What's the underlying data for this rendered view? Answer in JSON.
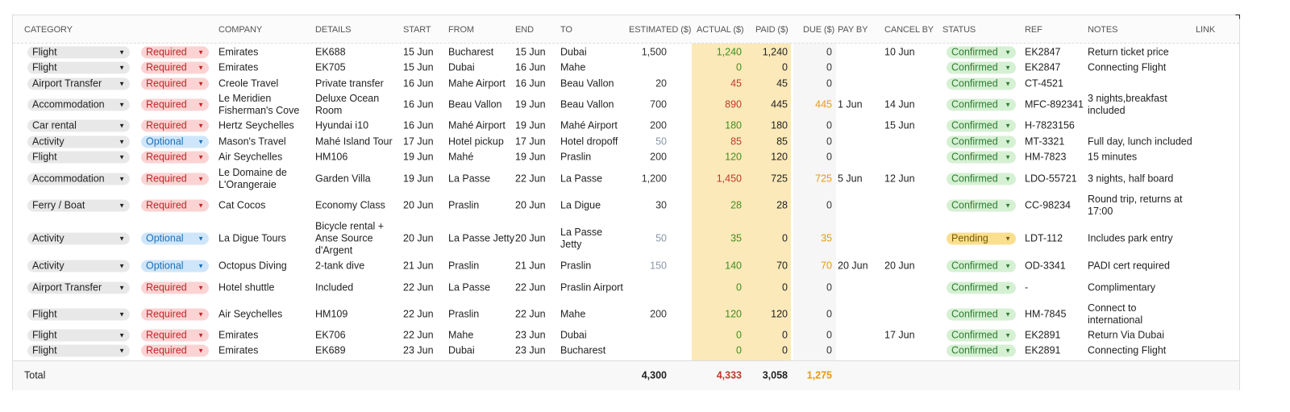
{
  "colors": {
    "green": "#3f8f1f",
    "red": "#c0392b",
    "orange": "#e69a0e",
    "muted": "#8a97a8",
    "required_bg": "#fbd3d3",
    "required_fg": "#c0262a",
    "optional_bg": "#cfe6fa",
    "optional_fg": "#1f6fb5",
    "confirmed_bg": "#d6f0d3",
    "confirmed_fg": "#2e7d32",
    "pending_bg": "#fbdf8f",
    "pending_fg": "#7a5a00",
    "category_bg": "#e8e8e8"
  },
  "headers": {
    "category": "CATEGORY",
    "company": "COMPANY",
    "details": "DETAILS",
    "start": "START",
    "from": "FROM",
    "end": "END",
    "to": "TO",
    "estimated": "ESTIMATED ($)",
    "actual": "ACTUAL ($)",
    "paid": "PAID ($)",
    "due": "DUE ($)",
    "pay_by": "PAY BY",
    "cancel_by": "CANCEL BY",
    "status": "STATUS",
    "ref": "REF",
    "notes": "NOTES",
    "link": "LINK"
  },
  "rows": [
    {
      "category": "Flight",
      "priority": "Required",
      "company": "Emirates",
      "details": "EK688",
      "start": "15 Jun",
      "from": "Bucharest",
      "end": "15 Jun",
      "to": "Dubai",
      "estimated": "1,500",
      "actual": "1,240",
      "actual_state": "under",
      "paid": "1,240",
      "due": "0",
      "pay_by": "",
      "cancel_by": "10 Jun",
      "status": "Confirmed",
      "ref": "EK2847",
      "notes": "Return ticket price"
    },
    {
      "category": "Flight",
      "priority": "Required",
      "company": "Emirates",
      "details": "EK705",
      "start": "15 Jun",
      "from": "Dubai",
      "end": "16 Jun",
      "to": "Mahe",
      "estimated": "",
      "actual": "0",
      "actual_state": "under",
      "paid": "0",
      "due": "0",
      "pay_by": "",
      "cancel_by": "",
      "status": "Confirmed",
      "ref": "EK2847",
      "notes": "Connecting Flight"
    },
    {
      "category": "Airport Transfer",
      "priority": "Required",
      "company": "Creole Travel",
      "details": "Private transfer",
      "start": "16 Jun",
      "from": "Mahe Airport",
      "end": "16 Jun",
      "to": "Beau Vallon",
      "estimated": "20",
      "actual": "45",
      "actual_state": "over",
      "paid": "45",
      "due": "0",
      "pay_by": "",
      "cancel_by": "",
      "status": "Confirmed",
      "ref": "CT-4521",
      "notes": ""
    },
    {
      "category": "Accommodation",
      "priority": "Required",
      "company": "Le Meridien Fisherman's Cove",
      "details": "Deluxe Ocean Room",
      "start": "16 Jun",
      "from": "Beau Vallon",
      "end": "19 Jun",
      "to": "Beau Vallon",
      "estimated": "700",
      "actual": "890",
      "actual_state": "over",
      "paid": "445",
      "due": "445",
      "pay_by": "1 Jun",
      "cancel_by": "14 Jun",
      "status": "Confirmed",
      "ref": "MFC-892341",
      "notes": "3 nights,breakfast included"
    },
    {
      "category": "Car rental",
      "priority": "Required",
      "company": "Hertz Seychelles",
      "details": "Hyundai i10",
      "start": "16 Jun",
      "from": "Mahé Airport",
      "end": "19 Jun",
      "to": "Mahé Airport",
      "estimated": "200",
      "actual": "180",
      "actual_state": "under",
      "paid": "180",
      "due": "0",
      "pay_by": "",
      "cancel_by": "15 Jun",
      "status": "Confirmed",
      "ref": "H-7823156",
      "notes": ""
    },
    {
      "category": "Activity",
      "priority": "Optional",
      "company": "Mason's Travel",
      "details": "Mahé Island Tour",
      "start": "17 Jun",
      "from": "Hotel pickup",
      "end": "17 Jun",
      "to": "Hotel dropoff",
      "estimated": "50",
      "actual": "85",
      "actual_state": "over",
      "paid": "85",
      "due": "0",
      "pay_by": "",
      "cancel_by": "",
      "status": "Confirmed",
      "ref": "MT-3321",
      "notes": "Full day, lunch included"
    },
    {
      "category": "Flight",
      "priority": "Required",
      "company": "Air Seychelles",
      "details": "HM106",
      "start": "19 Jun",
      "from": "Mahé",
      "end": "19 Jun",
      "to": "Praslin",
      "estimated": "200",
      "actual": "120",
      "actual_state": "under",
      "paid": "120",
      "due": "0",
      "pay_by": "",
      "cancel_by": "",
      "status": "Confirmed",
      "ref": "HM-7823",
      "notes": "15 minutes"
    },
    {
      "category": "Accommodation",
      "priority": "Required",
      "company": "Le Domaine de L'Orangeraie",
      "details": "Garden Villa",
      "start": "19 Jun",
      "from": "La Passe",
      "end": "22 Jun",
      "to": "La Passe",
      "estimated": "1,200",
      "actual": "1,450",
      "actual_state": "over",
      "paid": "725",
      "due": "725",
      "pay_by": "5 Jun",
      "cancel_by": "12 Jun",
      "status": "Confirmed",
      "ref": "LDO-55721",
      "notes": "3 nights, half board"
    },
    {
      "category": "Ferry / Boat",
      "priority": "Required",
      "company": "Cat Cocos",
      "details": "Economy Class",
      "start": "20 Jun",
      "from": "Praslin",
      "end": "20 Jun",
      "to": "La Digue",
      "estimated": "30",
      "actual": "28",
      "actual_state": "under",
      "paid": "28",
      "due": "0",
      "pay_by": "",
      "cancel_by": "",
      "status": "Confirmed",
      "ref": "CC-98234",
      "notes": "Round trip, returns at 17:00"
    },
    {
      "category": "Activity",
      "priority": "Optional",
      "company": "La Digue Tours",
      "details": "Bicycle rental + Anse Source d'Argent",
      "start": "20 Jun",
      "from": "La Passe Jetty",
      "end": "20 Jun",
      "to": "La Passe Jetty",
      "estimated": "50",
      "actual": "35",
      "actual_state": "under",
      "paid": "0",
      "due": "35",
      "pay_by": "",
      "cancel_by": "",
      "status": "Pending",
      "ref": "LDT-112",
      "notes": "Includes park entry"
    },
    {
      "category": "Activity",
      "priority": "Optional",
      "company": "Octopus Diving",
      "details": "2-tank dive",
      "start": "21 Jun",
      "from": "Praslin",
      "end": "21 Jun",
      "to": "Praslin",
      "estimated": "150",
      "actual": "140",
      "actual_state": "under",
      "paid": "70",
      "due": "70",
      "pay_by": "20 Jun",
      "cancel_by": "20 Jun",
      "status": "Confirmed",
      "ref": "OD-3341",
      "notes": "PADI cert required"
    },
    {
      "category": "Airport Transfer",
      "priority": "Required",
      "company": "Hotel shuttle",
      "details": "Included",
      "start": "22 Jun",
      "from": "La Passe",
      "end": "22 Jun",
      "to": "Praslin Airport",
      "estimated": "",
      "actual": "0",
      "actual_state": "under",
      "paid": "0",
      "due": "0",
      "pay_by": "",
      "cancel_by": "",
      "status": "Confirmed",
      "ref": "-",
      "notes": "Complimentary"
    },
    {
      "category": "Flight",
      "priority": "Required",
      "company": "Air Seychelles",
      "details": "HM109",
      "start": "22 Jun",
      "from": "Praslin",
      "end": "22 Jun",
      "to": "Mahe",
      "estimated": "200",
      "actual": "120",
      "actual_state": "under",
      "paid": "120",
      "due": "0",
      "pay_by": "",
      "cancel_by": "",
      "status": "Confirmed",
      "ref": "HM-7845",
      "notes": "Connect to international"
    },
    {
      "category": "Flight",
      "priority": "Required",
      "company": "Emirates",
      "details": "EK706",
      "start": "22 Jun",
      "from": "Mahe",
      "end": "23 Jun",
      "to": "Dubai",
      "estimated": "",
      "actual": "0",
      "actual_state": "under",
      "paid": "0",
      "due": "0",
      "pay_by": "",
      "cancel_by": "17 Jun",
      "status": "Confirmed",
      "ref": "EK2891",
      "notes": "Return Via Dubai"
    },
    {
      "category": "Flight",
      "priority": "Required",
      "company": "Emirates",
      "details": "EK689",
      "start": "23 Jun",
      "from": "Dubai",
      "end": "23 Jun",
      "to": "Bucharest",
      "estimated": "",
      "actual": "0",
      "actual_state": "under",
      "paid": "0",
      "due": "0",
      "pay_by": "",
      "cancel_by": "",
      "status": "Confirmed",
      "ref": "EK2891",
      "notes": "Connecting Flight"
    }
  ],
  "totals": {
    "label": "Total",
    "estimated": "4,300",
    "actual": "4,333",
    "paid": "3,058",
    "due": "1,275"
  }
}
